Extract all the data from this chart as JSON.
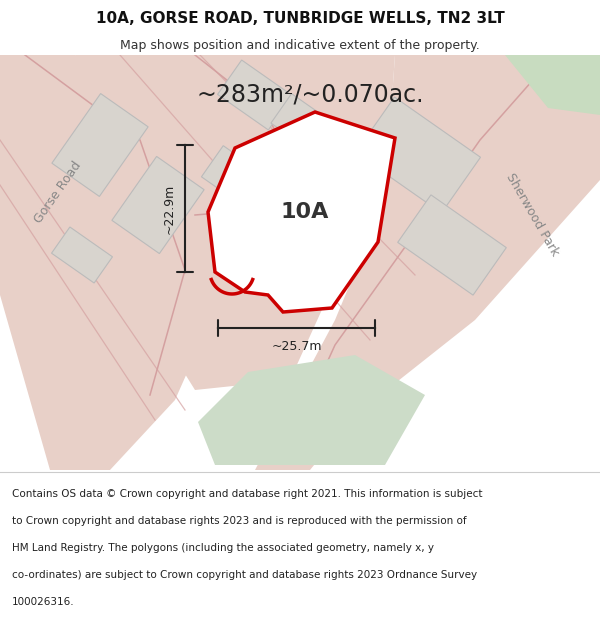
{
  "title": "10A, GORSE ROAD, TUNBRIDGE WELLS, TN2 3LT",
  "subtitle": "Map shows position and indicative extent of the property.",
  "area_text": "~283m²/~0.070ac.",
  "label_10A": "10A",
  "dim_height": "~22.9m",
  "dim_width": "~25.7m",
  "footer_lines": [
    "Contains OS data © Crown copyright and database right 2021. This information is subject",
    "to Crown copyright and database rights 2023 and is reproduced with the permission of",
    "HM Land Registry. The polygons (including the associated geometry, namely x, y",
    "co-ordinates) are subject to Crown copyright and database rights 2023 Ordnance Survey",
    "100026316."
  ],
  "bg_color": "#ffffff",
  "map_bg": "#f0ebe4",
  "road_color": "#e8d0c8",
  "road_line_color": "#d4a0a0",
  "building_fill": "#d8d4ce",
  "building_edge": "#bbbbbb",
  "green_fill": "#ccdcc8",
  "green_fill2": "#c8dcc0",
  "plot_fill": "#ffffff",
  "plot_edge": "#cc0000",
  "plot_edge_width": 2.5,
  "dim_line_color": "#222222",
  "label_road_gorse": "Gorse Road",
  "label_road_sherwood": "Sherwood Park",
  "title_fontsize": 11,
  "subtitle_fontsize": 9,
  "area_fontsize": 17,
  "label_fontsize": 16,
  "footer_fontsize": 7.5
}
